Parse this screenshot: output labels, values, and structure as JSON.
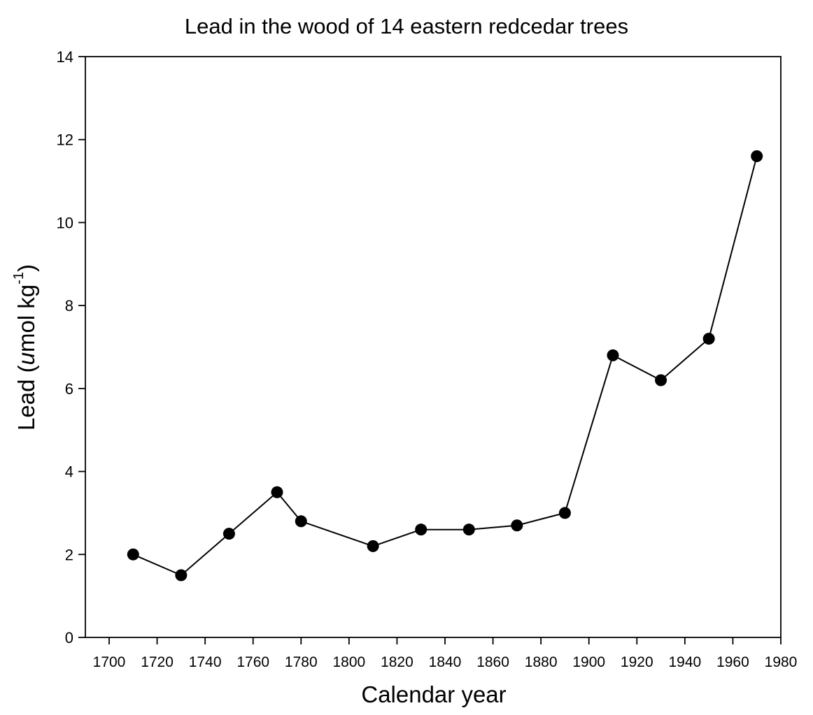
{
  "chart_data": {
    "type": "line",
    "title": "Lead in the wood of 14 eastern redcedar trees",
    "xlabel": "Calendar year",
    "ylabel": "Lead (umol kg-1)",
    "ylabel_parts": {
      "prefix": "Lead (",
      "italic": "u",
      "unit": "mol kg",
      "sup": "-1",
      "suffix": ")"
    },
    "xlim": [
      1690,
      1980
    ],
    "ylim": [
      0,
      14
    ],
    "x_ticks": [
      1700,
      1720,
      1740,
      1760,
      1780,
      1800,
      1820,
      1840,
      1860,
      1880,
      1900,
      1920,
      1940,
      1960,
      1980
    ],
    "y_ticks": [
      0,
      2,
      4,
      6,
      8,
      10,
      12,
      14
    ],
    "grid": false,
    "legend": null,
    "marker": "filled-circle",
    "line_color": "#000000",
    "series": [
      {
        "name": "Lead",
        "x": [
          1710,
          1730,
          1750,
          1770,
          1780,
          1810,
          1830,
          1850,
          1870,
          1890,
          1910,
          1930,
          1950,
          1970
        ],
        "y": [
          2.0,
          1.5,
          2.5,
          3.5,
          2.8,
          2.2,
          2.6,
          2.6,
          2.7,
          3.0,
          6.8,
          6.2,
          7.2,
          11.6
        ]
      }
    ]
  }
}
